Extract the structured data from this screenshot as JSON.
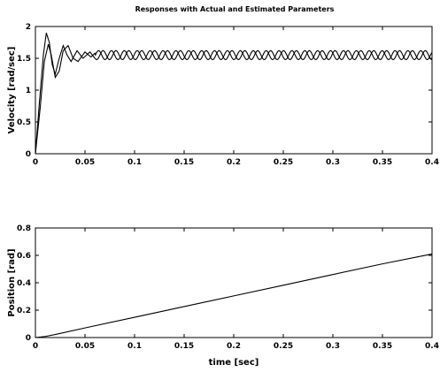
{
  "chart_data": [
    {
      "type": "line",
      "title": "Responses with Actual and Estimated Parameters",
      "xlabel": "",
      "ylabel": "Velocity [rad/sec]",
      "xlim": [
        0,
        0.4
      ],
      "ylim": [
        0,
        2
      ],
      "xticks": [
        "0",
        "0.05",
        "0.1",
        "0.15",
        "0.2",
        "0.25",
        "0.3",
        "0.35",
        "0.4"
      ],
      "yticks": [
        "0",
        "0.5",
        "1",
        "1.5",
        "2"
      ],
      "grid": false,
      "series": [
        {
          "x": [
            0,
            0.004,
            0.008,
            0.011,
            0.014,
            0.017,
            0.02,
            0.024,
            0.028,
            0.032,
            0.036,
            0.042,
            0.048,
            0.055,
            0.06
          ],
          "y": [
            0,
            0.8,
            1.55,
            1.9,
            1.75,
            1.4,
            1.25,
            1.5,
            1.7,
            1.55,
            1.45,
            1.62,
            1.5,
            1.6,
            1.5
          ],
          "steady_mean": 1.55,
          "steady_amplitude": 0.07,
          "period": 0.013,
          "phase": 0
        },
        {
          "x": [
            0,
            0.005,
            0.009,
            0.013,
            0.016,
            0.02,
            0.024,
            0.028,
            0.033,
            0.038,
            0.043,
            0.05,
            0.056,
            0.06
          ],
          "y": [
            0,
            0.75,
            1.45,
            1.72,
            1.55,
            1.2,
            1.3,
            1.62,
            1.7,
            1.5,
            1.45,
            1.6,
            1.52,
            1.58
          ],
          "steady_mean": 1.55,
          "steady_amplitude": 0.07,
          "period": 0.013,
          "phase": 0.35
        }
      ]
    },
    {
      "type": "line",
      "title": "",
      "xlabel": "time [sec]",
      "ylabel": "Position [rad]",
      "xlim": [
        0,
        0.4
      ],
      "ylim": [
        0,
        0.8
      ],
      "xticks": [
        "0",
        "0.05",
        "0.1",
        "0.15",
        "0.2",
        "0.25",
        "0.3",
        "0.35",
        "0.4"
      ],
      "yticks": [
        "0",
        "0.2",
        "0.4",
        "0.6",
        "0.8"
      ],
      "grid": false,
      "series": [
        {
          "x": [
            0,
            0.01,
            0.02,
            0.05,
            0.1,
            0.15,
            0.2,
            0.25,
            0.3,
            0.35,
            0.4
          ],
          "y": [
            0,
            0.008,
            0.022,
            0.07,
            0.148,
            0.226,
            0.304,
            0.382,
            0.46,
            0.538,
            0.61
          ]
        }
      ]
    }
  ]
}
